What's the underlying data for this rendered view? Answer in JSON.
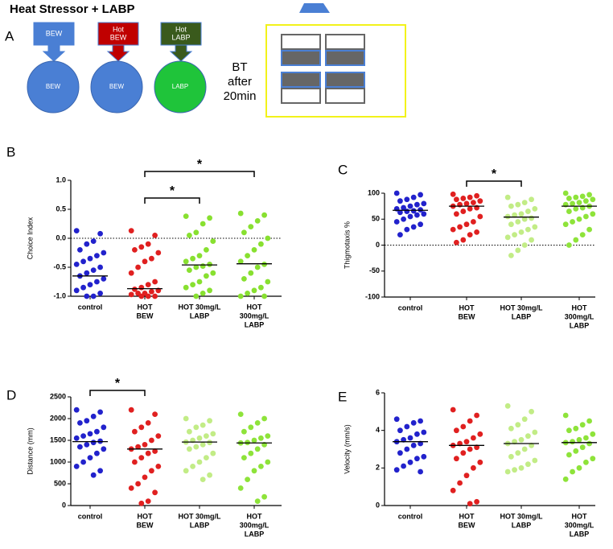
{
  "diagram": {
    "panel": "A",
    "title": "Heat Stressor + LABP",
    "boxes": [
      [
        "BEW"
      ],
      [
        "Hot",
        "BEW"
      ],
      [
        "Hot",
        "LABP"
      ]
    ],
    "box_colors": [
      "#4a7fd4",
      "#c00000",
      "#3a5a1c"
    ],
    "circles": [
      "BEW",
      "BEW",
      "LABP"
    ],
    "circle_colors": [
      "#4a7fd4",
      "#4a7fd4",
      "#1fc43a"
    ],
    "note": [
      "BT",
      "after",
      "20min"
    ]
  },
  "chart_data": [
    {
      "type": "scatter",
      "panel": "B",
      "ylabel": "Choice Index",
      "categories": [
        [
          "control"
        ],
        [
          "HOT",
          "BEW"
        ],
        [
          "HOT 30mg/L",
          "LABP"
        ],
        [
          "HOT",
          "300mg/L",
          "LABP"
        ]
      ],
      "ylim": [
        -1.0,
        1.0
      ],
      "yticks": [
        {
          "value": 1.0,
          "label": "1.0"
        },
        {
          "value": 0.5,
          "label": "0.5"
        },
        {
          "value": 0.0,
          "label": "0.0"
        },
        {
          "value": -0.5,
          "label": "-0.5"
        },
        {
          "value": -1.0,
          "label": "-1.0"
        }
      ],
      "hline": 0,
      "comparisons": [
        {
          "label": "*",
          "groups": [
            1,
            2
          ]
        },
        {
          "label": "*",
          "groups": [
            1,
            3
          ]
        }
      ],
      "series": [
        {
          "color": "#2222cc",
          "median": -0.65,
          "values": [
            0.13,
            0.08,
            -0.05,
            -0.1,
            -0.2,
            -0.25,
            -0.3,
            -0.35,
            -0.4,
            -0.45,
            -0.5,
            -0.55,
            -0.6,
            -0.65,
            -0.7,
            -0.75,
            -0.8,
            -0.85,
            -0.9,
            -0.95,
            -1.0,
            -1.0
          ]
        },
        {
          "color": "#e02020",
          "median": -0.87,
          "values": [
            0.13,
            0.05,
            -0.1,
            -0.15,
            -0.2,
            -0.25,
            -0.35,
            -0.4,
            -0.5,
            -0.6,
            -0.75,
            -0.8,
            -0.85,
            -0.88,
            -0.9,
            -0.92,
            -0.95,
            -0.95,
            -0.97,
            -1.0,
            -1.0,
            -1.0
          ]
        },
        {
          "color": "#88e030",
          "median": -0.46,
          "values": [
            0.38,
            0.35,
            0.25,
            0.1,
            0.05,
            -0.05,
            -0.2,
            -0.3,
            -0.35,
            -0.4,
            -0.45,
            -0.48,
            -0.5,
            -0.55,
            -0.6,
            -0.65,
            -0.75,
            -0.8,
            -0.85,
            -0.9,
            -0.95,
            -1.0
          ]
        },
        {
          "color": "#88e030",
          "median": -0.44,
          "values": [
            0.43,
            0.4,
            0.3,
            0.2,
            0.1,
            0.0,
            -0.1,
            -0.2,
            -0.3,
            -0.4,
            -0.45,
            -0.5,
            -0.6,
            -0.7,
            -0.75,
            -0.85,
            -0.9,
            -0.95,
            -1.0,
            -1.0
          ]
        }
      ]
    },
    {
      "type": "scatter",
      "panel": "C",
      "ylabel": "Thigmotaxis %",
      "categories": [
        [
          "control"
        ],
        [
          "HOT",
          "BEW"
        ],
        [
          "HOT 30mg/L",
          "LABP"
        ],
        [
          "HOT",
          "300mg/L",
          "LABP"
        ]
      ],
      "ylim": [
        -100,
        100
      ],
      "yticks": [
        100,
        50,
        0,
        -50,
        -100
      ],
      "hline": 0,
      "comparisons": [
        {
          "label": "*",
          "groups": [
            1,
            2
          ]
        }
      ],
      "series": [
        {
          "color": "#2222cc",
          "median": 67,
          "values": [
            100,
            97,
            92,
            88,
            85,
            80,
            78,
            75,
            72,
            70,
            68,
            66,
            65,
            63,
            60,
            58,
            55,
            50,
            45,
            40,
            35,
            30,
            20
          ]
        },
        {
          "color": "#e02020",
          "median": 75,
          "values": [
            98,
            95,
            92,
            90,
            88,
            85,
            82,
            80,
            78,
            75,
            72,
            70,
            65,
            60,
            55,
            45,
            40,
            35,
            30,
            25,
            20,
            10,
            5
          ]
        },
        {
          "color": "#c2ec86",
          "median": 54,
          "values": [
            92,
            88,
            82,
            78,
            75,
            70,
            65,
            60,
            58,
            55,
            52,
            50,
            45,
            40,
            35,
            30,
            25,
            20,
            15,
            10,
            0,
            -10,
            -20
          ]
        },
        {
          "color": "#8ee33a",
          "median": 75,
          "values": [
            100,
            97,
            94,
            92,
            90,
            88,
            85,
            82,
            80,
            78,
            75,
            72,
            70,
            65,
            60,
            55,
            50,
            45,
            40,
            30,
            20,
            10,
            0
          ]
        }
      ]
    },
    {
      "type": "scatter",
      "panel": "D",
      "ylabel": "Distance (mm)",
      "categories": [
        [
          "control"
        ],
        [
          "HOT",
          "BEW"
        ],
        [
          "HOT 30mg/L",
          "LABP"
        ],
        [
          "HOT",
          "300mg/L",
          "LABP"
        ]
      ],
      "ylim": [
        0,
        2500
      ],
      "yticks": [
        2500,
        2000,
        1500,
        1000,
        500,
        0
      ],
      "comparisons": [
        {
          "label": "*",
          "groups": [
            0,
            1
          ]
        }
      ],
      "series": [
        {
          "color": "#2222cc",
          "median": 1470,
          "values": [
            2200,
            2150,
            2050,
            1950,
            1900,
            1800,
            1700,
            1650,
            1600,
            1550,
            1480,
            1450,
            1400,
            1350,
            1300,
            1200,
            1100,
            1000,
            900,
            800,
            700
          ]
        },
        {
          "color": "#e02020",
          "median": 1300,
          "values": [
            2200,
            2100,
            1900,
            1800,
            1700,
            1600,
            1500,
            1400,
            1350,
            1300,
            1250,
            1200,
            1100,
            1000,
            900,
            800,
            650,
            500,
            400,
            300,
            100,
            50
          ]
        },
        {
          "color": "#c2ec86",
          "median": 1460,
          "values": [
            2000,
            1950,
            1850,
            1800,
            1700,
            1650,
            1600,
            1550,
            1500,
            1460,
            1450,
            1400,
            1350,
            1300,
            1200,
            1100,
            1000,
            900,
            800,
            700,
            600
          ]
        },
        {
          "color": "#8ee33a",
          "median": 1440,
          "values": [
            2100,
            2000,
            1900,
            1800,
            1700,
            1600,
            1550,
            1500,
            1450,
            1440,
            1400,
            1300,
            1200,
            1100,
            1000,
            900,
            800,
            600,
            400,
            200,
            100
          ]
        }
      ]
    },
    {
      "type": "scatter",
      "panel": "E",
      "ylabel": "Velocity (mm/s)",
      "categories": [
        [
          "control"
        ],
        [
          "HOT",
          "BEW"
        ],
        [
          "HOT 30mg/L",
          "LABP"
        ],
        [
          "HOT",
          "300mg/L",
          "LABP"
        ]
      ],
      "ylim": [
        0,
        6
      ],
      "yticks": [
        6,
        4,
        2,
        0
      ],
      "comparisons": [],
      "series": [
        {
          "color": "#2222cc",
          "median": 3.4,
          "values": [
            4.6,
            4.5,
            4.4,
            4.2,
            4.0,
            3.9,
            3.8,
            3.6,
            3.5,
            3.4,
            3.3,
            3.2,
            3.0,
            2.8,
            2.6,
            2.5,
            2.3,
            2.1,
            1.9,
            1.8
          ]
        },
        {
          "color": "#e02020",
          "median": 3.2,
          "values": [
            5.1,
            4.8,
            4.5,
            4.2,
            4.0,
            3.8,
            3.6,
            3.4,
            3.3,
            3.2,
            3.1,
            3.0,
            2.8,
            2.5,
            2.3,
            2.0,
            1.6,
            1.2,
            0.8,
            0.2,
            0.1
          ]
        },
        {
          "color": "#c2ec86",
          "median": 3.3,
          "values": [
            5.3,
            5.0,
            4.6,
            4.3,
            4.1,
            3.9,
            3.7,
            3.5,
            3.4,
            3.3,
            3.2,
            3.0,
            2.8,
            2.6,
            2.4,
            2.2,
            2.0,
            1.9,
            1.8
          ]
        },
        {
          "color": "#8ee33a",
          "median": 3.35,
          "values": [
            4.8,
            4.5,
            4.3,
            4.1,
            4.0,
            3.8,
            3.6,
            3.5,
            3.4,
            3.35,
            3.3,
            3.1,
            2.9,
            2.7,
            2.5,
            2.3,
            2.0,
            1.8,
            1.4
          ]
        }
      ]
    }
  ]
}
